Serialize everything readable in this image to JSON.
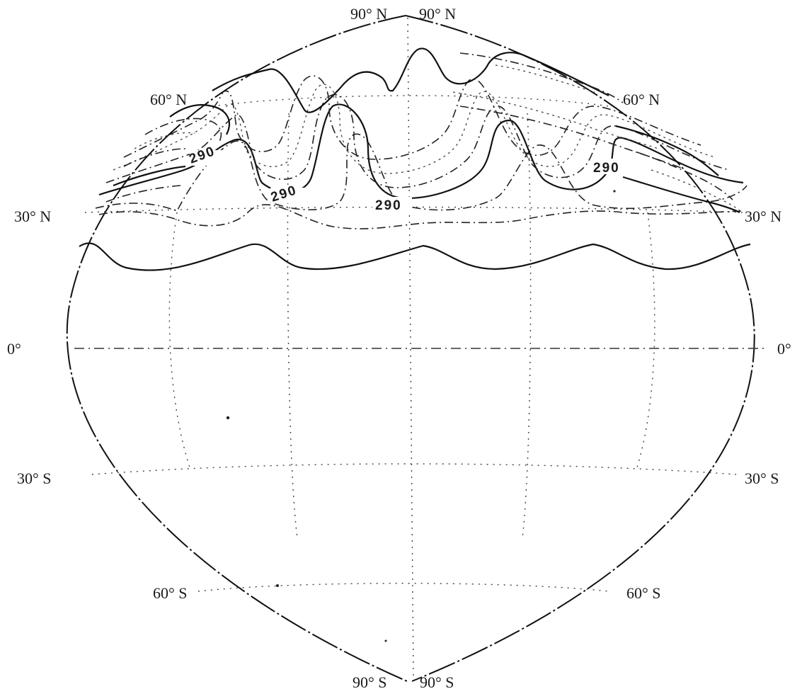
{
  "latitude_labels": {
    "n90_left": "90° N",
    "n90_right": "90° N",
    "n60_left": "60° N",
    "n60_right": "60° N",
    "n30_left": "30° N",
    "n30_right": "30° N",
    "eq_left": "0°",
    "eq_right": "0°",
    "s30_left": "30° S",
    "s30_right": "30° S",
    "s60_left": "60° S",
    "s60_right": "60° S",
    "s90_left": "90° S",
    "s90_right": "90° S"
  },
  "contour_labels": [
    "290",
    "290",
    "290",
    "290"
  ]
}
